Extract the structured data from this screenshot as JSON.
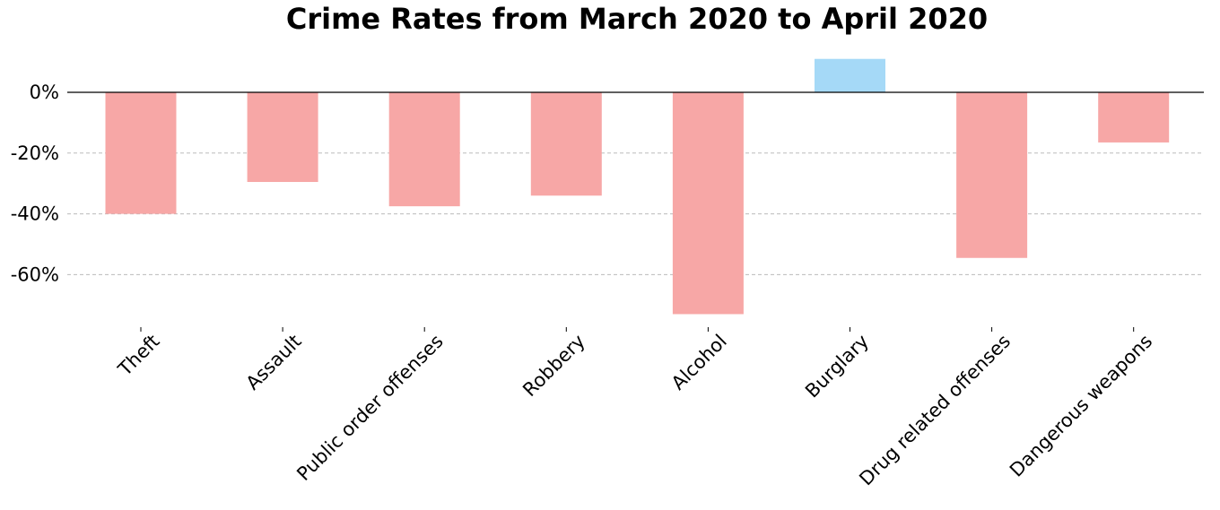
{
  "chart_data": {
    "type": "bar",
    "title": "Crime Rates from March 2020 to April 2020",
    "categories": [
      "Theft",
      "Assault",
      "Public order offenses",
      "Robbery",
      "Alcohol",
      "Burglary",
      "Drug related offenses",
      "Dangerous weapons"
    ],
    "values": [
      -40,
      -29.5,
      -37.5,
      -34,
      -73,
      11,
      -54.5,
      -16.5
    ],
    "value_unit": "%",
    "yticks": [
      "0%",
      "-20%",
      "-40%",
      "-60%"
    ],
    "ytick_values": [
      0,
      -20,
      -40,
      -60
    ],
    "ylim": [
      -77,
      11
    ],
    "xlabel": "",
    "ylabel": "",
    "grid": "y-dashed",
    "colors": {
      "negative": "#f7a7a6",
      "positive": "#a5d9f7",
      "zero_line": "#000000",
      "grid": "#bbbbbb"
    }
  }
}
